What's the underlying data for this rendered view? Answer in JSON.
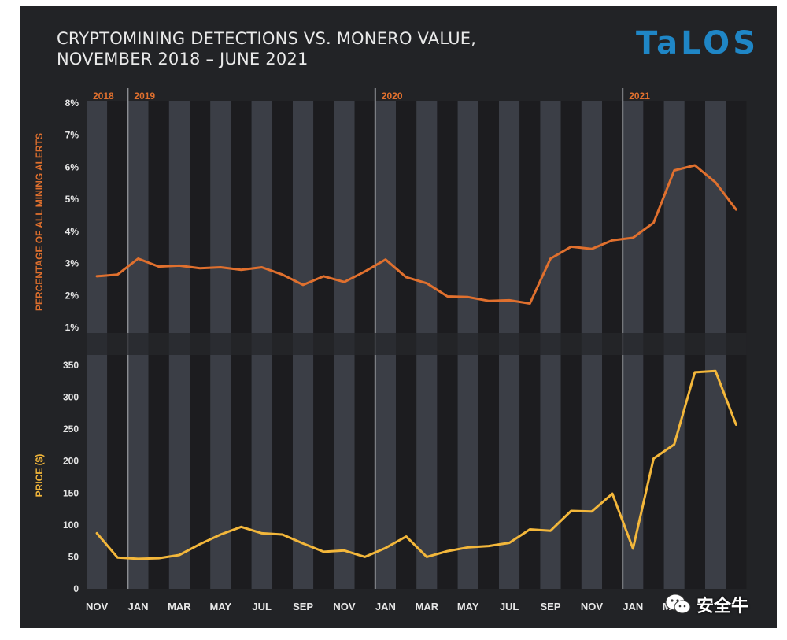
{
  "header": {
    "title_line1": "CRYPTOMINING DETECTIONS VS. MONERO VALUE,",
    "title_line2": "NOVEMBER 2018 – JUNE 2021",
    "logo": "TaLOS"
  },
  "watermark": {
    "text": "安全牛",
    "icon": "wechat-icon"
  },
  "colors": {
    "background": "#222326",
    "band_light": "#3b3e46",
    "band_dark": "#1c1c1f",
    "alerts_line": "#e0702e",
    "price_line": "#f3b73b",
    "tick_text": "#e6e6e6",
    "year_text": "#e0702e",
    "logo": "#1f86c6"
  },
  "chart_data": [
    {
      "type": "line",
      "title": "CRYPTOMINING DETECTIONS VS. MONERO VALUE, NOVEMBER 2018 – JUNE 2021",
      "ylabel": "PERCENTAGE OF ALL MINING ALERTS",
      "ylim": [
        1,
        8
      ],
      "yticks": [
        1,
        2,
        3,
        4,
        5,
        6,
        7,
        8
      ],
      "ytick_labels": [
        "1%",
        "2%",
        "3%",
        "4%",
        "5%",
        "6%",
        "7%",
        "8%"
      ],
      "x": [
        "Nov 2018",
        "Dec 2018",
        "Jan 2019",
        "Feb 2019",
        "Mar 2019",
        "Apr 2019",
        "May 2019",
        "Jun 2019",
        "Jul 2019",
        "Aug 2019",
        "Sep 2019",
        "Oct 2019",
        "Nov 2019",
        "Dec 2019",
        "Jan 2020",
        "Feb 2020",
        "Mar 2020",
        "Apr 2020",
        "May 2020",
        "Jun 2020",
        "Jul 2020",
        "Aug 2020",
        "Sep 2020",
        "Oct 2020",
        "Nov 2020",
        "Dec 2020",
        "Jan 2021",
        "Feb 2021",
        "Mar 2021",
        "Apr 2021",
        "May 2021",
        "Jun 2021"
      ],
      "values": [
        2.6,
        2.65,
        3.15,
        2.9,
        2.93,
        2.85,
        2.88,
        2.8,
        2.88,
        2.65,
        2.33,
        2.6,
        2.42,
        2.75,
        3.12,
        2.57,
        2.38,
        1.97,
        1.95,
        1.83,
        1.85,
        1.75,
        3.15,
        3.52,
        3.45,
        3.72,
        3.8,
        4.27,
        5.9,
        6.06,
        5.53,
        4.68
      ],
      "series_name": "Mining alerts (%)",
      "grid": true
    },
    {
      "type": "line",
      "ylabel": "PRICE ($)",
      "ylim": [
        0,
        350
      ],
      "yticks": [
        0,
        50,
        100,
        150,
        200,
        250,
        300,
        350
      ],
      "ytick_labels": [
        "0",
        "50",
        "100",
        "150",
        "200",
        "250",
        "300",
        "350"
      ],
      "x": [
        "Nov 2018",
        "Dec 2018",
        "Jan 2019",
        "Feb 2019",
        "Mar 2019",
        "Apr 2019",
        "May 2019",
        "Jun 2019",
        "Jul 2019",
        "Aug 2019",
        "Sep 2019",
        "Oct 2019",
        "Nov 2019",
        "Dec 2019",
        "Jan 2020",
        "Feb 2020",
        "Mar 2020",
        "Apr 2020",
        "May 2020",
        "Jun 2020",
        "Jul 2020",
        "Aug 2020",
        "Sep 2020",
        "Oct 2020",
        "Nov 2020",
        "Dec 2020",
        "Jan 2021",
        "Feb 2021",
        "Mar 2021",
        "Apr 2021",
        "May 2021",
        "Jun 2021"
      ],
      "values": [
        87,
        49,
        47,
        48,
        53,
        70,
        85,
        97,
        87,
        85,
        71,
        58,
        60,
        50,
        64,
        82,
        50,
        59,
        65,
        67,
        72,
        93,
        91,
        122,
        121,
        149,
        63,
        204,
        226,
        339,
        341,
        257
      ],
      "series_name": "Monero price ($)",
      "grid": true
    }
  ],
  "x_axis": {
    "month_labels": [
      "NOV",
      "JAN",
      "MAR",
      "MAY",
      "JUL",
      "SEP",
      "NOV",
      "JAN",
      "MAR",
      "MAY",
      "JUL",
      "SEP",
      "NOV",
      "JAN",
      "MAR"
    ],
    "year_labels": [
      "2018",
      "2019",
      "2020",
      "2021"
    ]
  }
}
